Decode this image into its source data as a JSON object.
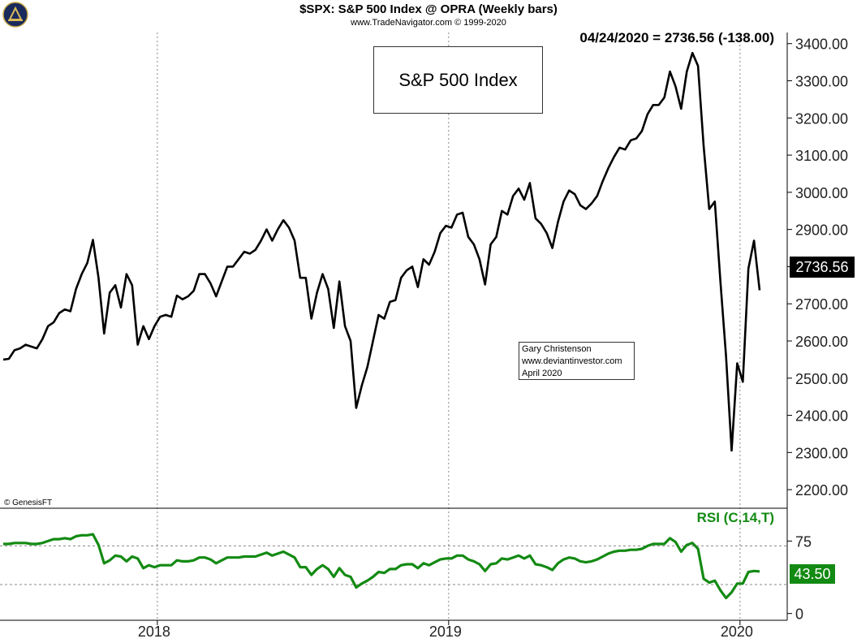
{
  "header": {
    "title": "$SPX:  S&P 500 Index @ OPRA  (Weekly bars)",
    "copyright": "www.TradeNavigator.com © 1999-2020"
  },
  "annotations": {
    "last_quote": "04/24/2020 = 2736.56 (-138.00)",
    "price_box": "S&P 500 Index",
    "author_lines": [
      "Gary Christenson",
      "www.deviantinvestor.com",
      "April 2020"
    ],
    "genesis": "© GenesisFT",
    "rsi_label": "RSI (C,14,T)",
    "price_badge": "2736.56",
    "rsi_badge": "43.50"
  },
  "colors": {
    "price_line": "#000000",
    "rsi_line": "#138a13",
    "grid": "#888888"
  },
  "chart_data": [
    {
      "type": "line",
      "name": "price",
      "ylim": [
        2150,
        3430
      ],
      "y_ticks": [
        "3400.00",
        "3300.00",
        "3200.00",
        "3100.00",
        "3000.00",
        "2900.00",
        "2800.00",
        "2700.00",
        "2600.00",
        "2500.00",
        "2400.00",
        "2300.00",
        "2200.00"
      ],
      "y_tick_values": [
        3400,
        3300,
        3200,
        3100,
        3000,
        2900,
        2800,
        2700,
        2600,
        2500,
        2400,
        2300,
        2200
      ],
      "x_ticks": [
        "2018",
        "2019",
        "2020"
      ],
      "x_tick_weeks": [
        27.5,
        79.5,
        131.5
      ],
      "values": [
        2550,
        2552,
        2575,
        2580,
        2590,
        2585,
        2580,
        2605,
        2640,
        2650,
        2675,
        2685,
        2680,
        2740,
        2780,
        2810,
        2872,
        2770,
        2620,
        2730,
        2750,
        2690,
        2780,
        2750,
        2590,
        2640,
        2605,
        2640,
        2665,
        2670,
        2665,
        2722,
        2712,
        2720,
        2735,
        2780,
        2780,
        2755,
        2720,
        2760,
        2800,
        2800,
        2820,
        2840,
        2835,
        2845,
        2870,
        2900,
        2870,
        2900,
        2925,
        2905,
        2870,
        2770,
        2770,
        2660,
        2730,
        2780,
        2740,
        2635,
        2760,
        2640,
        2600,
        2420,
        2480,
        2530,
        2600,
        2670,
        2660,
        2705,
        2710,
        2770,
        2790,
        2800,
        2745,
        2820,
        2805,
        2840,
        2890,
        2910,
        2905,
        2940,
        2945,
        2880,
        2860,
        2820,
        2752,
        2860,
        2880,
        2950,
        2940,
        2990,
        3010,
        2980,
        3025,
        2930,
        2915,
        2890,
        2850,
        2920,
        2975,
        3005,
        2995,
        2965,
        2955,
        2970,
        2990,
        3030,
        3065,
        3095,
        3120,
        3115,
        3140,
        3145,
        3165,
        3210,
        3235,
        3235,
        3255,
        3325,
        3285,
        3225,
        3325,
        3375,
        3340,
        3125,
        2955,
        2975,
        2760,
        2560,
        2305,
        2540,
        2490,
        2795,
        2870,
        2736.56
      ]
    },
    {
      "type": "line",
      "name": "rsi",
      "ylim": [
        -7,
        109
      ],
      "y_ticks": [
        "75",
        "0"
      ],
      "y_tick_values": [
        75,
        0
      ],
      "dashed_levels": [
        70,
        30
      ],
      "values": [
        72,
        72,
        73,
        73,
        73,
        72,
        72,
        73,
        75,
        77,
        77,
        78,
        77,
        80,
        81,
        81,
        82,
        71,
        52,
        55,
        60,
        59,
        54,
        59,
        57,
        47,
        50,
        48,
        50,
        50,
        50,
        55,
        54,
        54,
        55,
        58,
        58,
        56,
        52,
        55,
        58,
        58,
        58,
        59,
        59,
        59,
        61,
        63,
        60,
        62,
        64,
        61,
        58,
        48,
        48,
        40,
        46,
        50,
        46,
        38,
        47,
        40,
        38,
        27,
        31,
        34,
        38,
        43,
        42,
        46,
        46,
        50,
        51,
        51,
        47,
        52,
        50,
        53,
        56,
        57,
        57,
        60,
        60,
        56,
        54,
        51,
        44,
        51,
        52,
        57,
        56,
        58,
        60,
        57,
        60,
        51,
        50,
        48,
        45,
        52,
        56,
        58,
        57,
        54,
        53,
        54,
        56,
        59,
        62,
        64,
        65,
        65,
        66,
        66,
        67,
        70,
        72,
        72,
        72,
        78,
        74,
        64,
        71,
        73,
        67,
        36,
        32,
        34,
        24,
        16,
        22,
        31,
        31,
        43,
        44,
        43.5
      ]
    }
  ]
}
